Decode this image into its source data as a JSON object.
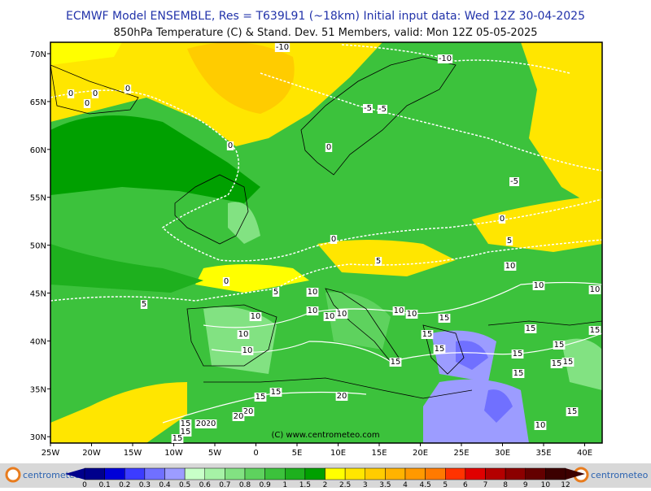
{
  "header": {
    "line1": "ECMWF Model ENSEMBLE, Res = T639L91 (~18km)  Initial input data: Wed 12Z 30-04-2025",
    "line2": "850hPa Temperature (C) & Stand. Dev.    51 Members, valid: Mon 12Z 05-05-2025"
  },
  "lat_labels": [
    "70N",
    "65N",
    "60N",
    "55N",
    "50N",
    "45N",
    "40N",
    "35N",
    "30N"
  ],
  "lon_labels": [
    "25W",
    "20W",
    "15W",
    "10W",
    "5W",
    "0",
    "5E",
    "10E",
    "15E",
    "20E",
    "25E",
    "30E",
    "35E",
    "40E"
  ],
  "contour_labels": [
    "-10",
    "-10",
    "0",
    "0",
    "0",
    "0",
    "-5",
    "-5",
    "0",
    "0",
    "-5",
    "0",
    "0",
    "5",
    "5",
    "10",
    "0",
    "5",
    "10",
    "10",
    "5",
    "10",
    "10",
    "10",
    "10",
    "10",
    "10",
    "10",
    "15",
    "15",
    "10",
    "15",
    "15",
    "15",
    "10",
    "15",
    "15",
    "15",
    "15",
    "15",
    "15",
    "15",
    "15",
    "20",
    "20",
    "20",
    "15",
    "10",
    "15",
    "20",
    "20",
    "15",
    "15"
  ],
  "watermark": "(C) www.centrometeo.com",
  "logo_left": "centrometeo",
  "logo_right": "centrometeo",
  "colorbar": {
    "labels": [
      "0",
      "0.1",
      "0.2",
      "0.3",
      "0.4",
      "0.5",
      "0.6",
      "0.7",
      "0.8",
      "0.9",
      "1",
      "1.5",
      "2",
      "2.5",
      "3",
      "3.5",
      "4",
      "4.5",
      "5",
      "6",
      "7",
      "8",
      "9",
      "10",
      "12"
    ],
    "colors": [
      "#00008c",
      "#0000d8",
      "#3c3cff",
      "#7070ff",
      "#9c9cff",
      "#c8ffc8",
      "#a6f2a6",
      "#82e282",
      "#5ed25e",
      "#3cc23c",
      "#1eb01e",
      "#00a000",
      "#ffff00",
      "#ffe600",
      "#ffcc00",
      "#ffb300",
      "#ff9900",
      "#ff7a00",
      "#ff3300",
      "#e00000",
      "#b40000",
      "#8c0000",
      "#640000",
      "#3c0000"
    ]
  }
}
